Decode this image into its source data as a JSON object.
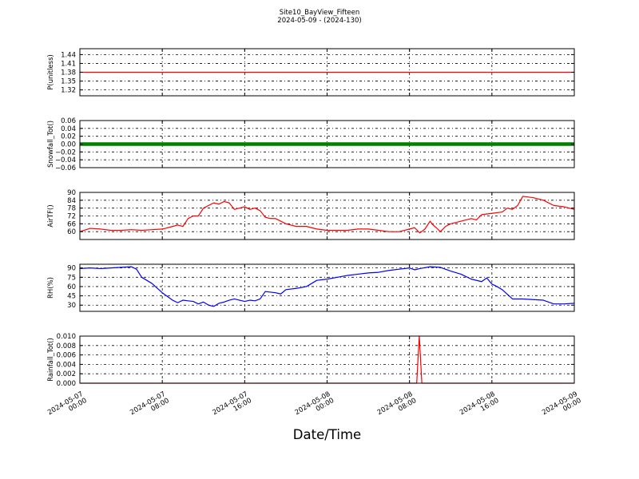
{
  "header": {
    "title": "Site10_BayView_Fifteen",
    "subtitle": "2024-05-09 - (2024-130)"
  },
  "x_axis": {
    "label": "Date/Time",
    "ticks": [
      {
        "hours": 0,
        "line1": "2024-05-07",
        "line2": "00:00"
      },
      {
        "hours": 8,
        "line1": "2024-05-07",
        "line2": "08:00"
      },
      {
        "hours": 16,
        "line1": "2024-05-07",
        "line2": "16:00"
      },
      {
        "hours": 24,
        "line1": "2024-05-08",
        "line2": "00:00"
      },
      {
        "hours": 32,
        "line1": "2024-05-08",
        "line2": "08:00"
      },
      {
        "hours": 40,
        "line1": "2024-05-08",
        "line2": "16:00"
      },
      {
        "hours": 48,
        "line1": "2024-05-09",
        "line2": "00:00"
      }
    ]
  },
  "chart_data": [
    {
      "type": "line",
      "ylabel": "P(unitless)",
      "ylim": [
        1.3,
        1.46
      ],
      "yticks": [
        "1.44",
        "1.41",
        "1.38",
        "1.35",
        "1.32"
      ],
      "ytick_values": [
        1.44,
        1.41,
        1.38,
        1.35,
        1.32
      ],
      "color": "#ff0000",
      "grid": true,
      "x": [
        0,
        48
      ],
      "y": [
        1.38,
        1.38
      ]
    },
    {
      "type": "line",
      "ylabel": "Snowfall_Tot()",
      "ylim": [
        -0.06,
        0.06
      ],
      "yticks": [
        "0.06",
        "0.04",
        "0.02",
        "0.00",
        "−0.02",
        "−0.04",
        "−0.06"
      ],
      "ytick_values": [
        0.06,
        0.04,
        0.02,
        0.0,
        -0.02,
        -0.04,
        -0.06
      ],
      "color": "#008000",
      "grid": true,
      "x": [
        0,
        48
      ],
      "y": [
        0.0,
        0.0
      ]
    },
    {
      "type": "line",
      "ylabel": "AirTF()",
      "ylim": [
        54,
        90
      ],
      "yticks": [
        "90",
        "84",
        "78",
        "72",
        "66",
        "60"
      ],
      "ytick_values": [
        90,
        84,
        78,
        72,
        66,
        60
      ],
      "color": "#ff0000",
      "grid": true,
      "x": [
        0,
        1,
        2,
        3,
        4,
        5,
        6,
        7,
        8,
        8.3,
        9,
        9.5,
        10,
        10.5,
        11,
        11.5,
        12,
        12.5,
        13,
        13.5,
        14,
        14.5,
        15,
        15.5,
        16,
        16.5,
        17,
        17.5,
        18,
        18.5,
        19,
        20,
        21,
        22,
        23,
        24,
        25,
        26,
        27,
        28,
        29,
        30,
        31,
        31.5,
        32,
        32.5,
        33,
        33.5,
        34,
        34.3,
        34.6,
        35,
        35.5,
        36,
        37,
        38,
        38.5,
        39,
        40,
        41,
        41.5,
        42,
        42.5,
        43,
        44,
        45,
        46,
        47,
        48
      ],
      "y": [
        60,
        62.5,
        62,
        61,
        61,
        61.5,
        61,
        61.5,
        62,
        62.5,
        64,
        65,
        64,
        70,
        72,
        72,
        78,
        80,
        82,
        81,
        83,
        82,
        77,
        78,
        79,
        77,
        78,
        76,
        71,
        70,
        70,
        66,
        64,
        64,
        62,
        61,
        61,
        61,
        62,
        62,
        61,
        60,
        60,
        61,
        62,
        63,
        59,
        62,
        68,
        65,
        63,
        60,
        64,
        66,
        68,
        70,
        69,
        73,
        74,
        75,
        78,
        77,
        80,
        87,
        86,
        84,
        80,
        79,
        77
      ]
    },
    {
      "type": "line",
      "ylabel": "RH(%)",
      "ylim": [
        20,
        96
      ],
      "yticks": [
        "90",
        "75",
        "60",
        "45",
        "30"
      ],
      "ytick_values": [
        90,
        75,
        60,
        45,
        30
      ],
      "color": "#0000ff",
      "grid": true,
      "x": [
        0,
        1,
        2,
        3,
        4,
        5,
        5.5,
        6,
        7,
        8,
        9,
        9.5,
        10,
        10.5,
        11,
        11.5,
        12,
        12.5,
        13,
        13.5,
        14,
        14.5,
        15,
        15.5,
        16,
        16.5,
        17,
        17.5,
        18,
        19,
        19.5,
        20,
        21,
        22,
        23,
        24,
        25,
        26,
        27,
        28,
        29,
        30,
        31,
        32,
        32.5,
        33,
        34,
        35,
        36,
        37,
        38,
        39,
        39.5,
        40,
        40.5,
        41,
        42,
        43,
        44,
        45,
        46,
        47,
        48
      ],
      "y": [
        89,
        90,
        89,
        90,
        91,
        92,
        88,
        75,
        65,
        50,
        38,
        34,
        38,
        37,
        36,
        32,
        35,
        30,
        28,
        33,
        35,
        38,
        40,
        38,
        36,
        38,
        37,
        40,
        52,
        50,
        48,
        55,
        57,
        60,
        70,
        72,
        75,
        78,
        80,
        82,
        83,
        86,
        88,
        90,
        87,
        89,
        92,
        91,
        85,
        80,
        72,
        68,
        74,
        64,
        60,
        55,
        40,
        40,
        39,
        38,
        32,
        32,
        33
      ]
    },
    {
      "type": "line",
      "ylabel": "Rainfall_Tot()",
      "ylim": [
        0.0,
        0.01
      ],
      "yticks": [
        "0.010",
        "0.008",
        "0.006",
        "0.004",
        "0.002",
        "0.000"
      ],
      "ytick_values": [
        0.01,
        0.008,
        0.006,
        0.004,
        0.002,
        0.0
      ],
      "color": "#ff0000",
      "grid": true,
      "x": [
        0,
        32.7,
        32.95,
        33.2,
        48
      ],
      "y": [
        0,
        0,
        0.01,
        0,
        0
      ]
    }
  ]
}
